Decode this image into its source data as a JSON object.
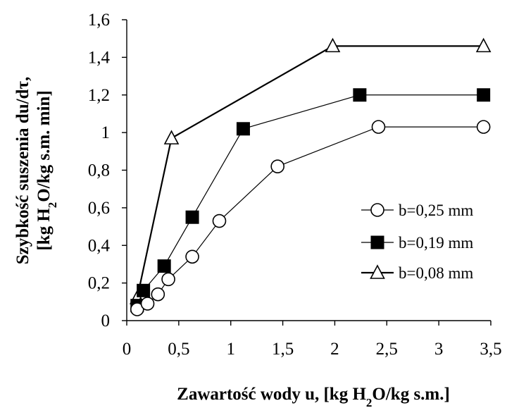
{
  "chart_data": {
    "type": "line",
    "title": "",
    "xlabel": {
      "main": "Zawartość wody u, [kg H",
      "sub": "2",
      "rest": "O/kg s.m.]"
    },
    "ylabel": {
      "line1": "Szybkość suszenia du/dτ,",
      "line2": {
        "main": "[kg H",
        "sub": "2",
        "rest": "O/kg s.m. min]"
      }
    },
    "xlim": [
      0,
      3.5
    ],
    "ylim": [
      0,
      1.6
    ],
    "xticks": [
      {
        "v": 0,
        "label": "0"
      },
      {
        "v": 0.5,
        "label": "0,5"
      },
      {
        "v": 1,
        "label": "1"
      },
      {
        "v": 1.5,
        "label": "1,5"
      },
      {
        "v": 2,
        "label": "2"
      },
      {
        "v": 2.5,
        "label": "2,5"
      },
      {
        "v": 3,
        "label": "3"
      },
      {
        "v": 3.5,
        "label": "3,5"
      }
    ],
    "yticks": [
      {
        "v": 0,
        "label": "0"
      },
      {
        "v": 0.2,
        "label": "0,2"
      },
      {
        "v": 0.4,
        "label": "0,4"
      },
      {
        "v": 0.6,
        "label": "0,6"
      },
      {
        "v": 0.8,
        "label": "0,8"
      },
      {
        "v": 1,
        "label": "1"
      },
      {
        "v": 1.2,
        "label": "1,2"
      },
      {
        "v": 1.4,
        "label": "1,4"
      },
      {
        "v": 1.6,
        "label": "1,6"
      }
    ],
    "grid": false,
    "legend_position": "right",
    "series": [
      {
        "name": "b=0,25 mm",
        "marker": "circle-open",
        "x": [
          0.1,
          0.2,
          0.3,
          0.4,
          0.63,
          0.89,
          1.45,
          2.42,
          3.43
        ],
        "y": [
          0.06,
          0.09,
          0.14,
          0.22,
          0.34,
          0.53,
          0.82,
          1.03,
          1.03
        ]
      },
      {
        "name": "b=0,19 mm",
        "marker": "square-filled",
        "x": [
          0.1,
          0.16,
          0.36,
          0.63,
          1.12,
          2.24,
          3.43
        ],
        "y": [
          0.08,
          0.16,
          0.29,
          0.55,
          1.02,
          1.2,
          1.2
        ]
      },
      {
        "name": "b=0,08 mm",
        "marker": "triangle-open",
        "x": [
          0.1,
          0.43,
          1.98,
          3.43
        ],
        "y": [
          0.12,
          0.97,
          1.46,
          1.46
        ]
      }
    ]
  }
}
